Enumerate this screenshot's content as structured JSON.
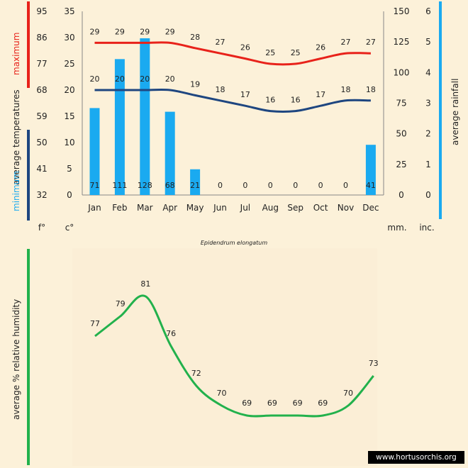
{
  "colors": {
    "background": "#fcf1d9",
    "panel": "#fbeed6",
    "max_line": "#e8221a",
    "min_line": "#1e4680",
    "rain_bar": "#1aaaf0",
    "humidity_line": "#22b14c",
    "axis_text": "#222222"
  },
  "axes": {
    "fahrenheit_ticks": [
      "32",
      "41",
      "50",
      "59",
      "68",
      "77",
      "86",
      "95"
    ],
    "celsius_ticks": [
      "0",
      "5",
      "10",
      "15",
      "20",
      "25",
      "30",
      "35"
    ],
    "mm_ticks": [
      "0",
      "25",
      "50",
      "75",
      "100",
      "125",
      "150"
    ],
    "inch_ticks": [
      "0",
      "1",
      "2",
      "3",
      "4",
      "5",
      "6"
    ],
    "unit_f": "f°",
    "unit_c": "c°",
    "unit_mm": "mm.",
    "unit_inch": "inc."
  },
  "labels": {
    "left_max": "maximum",
    "left_temps": "average  temperatures",
    "left_min": "minimum",
    "right_rain": "average rainfall",
    "caption": "Epidendrum elongatum",
    "humidity": "average %  relative humidity",
    "watermark": "www.hortusorchis.org"
  },
  "chart_data": [
    {
      "type": "line",
      "x": [
        "Jan",
        "Feb",
        "Mar",
        "Apr",
        "May",
        "Jun",
        "Jul",
        "Aug",
        "Sep",
        "Oct",
        "Nov",
        "Dec"
      ],
      "series": [
        {
          "name": "maximum",
          "unit": "c°",
          "values": [
            29,
            29,
            29,
            29,
            28,
            27,
            26,
            25,
            25,
            26,
            27,
            27
          ]
        },
        {
          "name": "minimum",
          "unit": "c°",
          "values": [
            20,
            20,
            20,
            20,
            19,
            18,
            17,
            16,
            16,
            17,
            18,
            18
          ]
        }
      ],
      "bars": {
        "unit": "mm.",
        "values": [
          71,
          111,
          128,
          68,
          21,
          0,
          0,
          0,
          0,
          0,
          0,
          41
        ]
      },
      "ylim_celsius": [
        0,
        35
      ],
      "ylim_fahrenheit": [
        32,
        95
      ],
      "ylim_mm": [
        0,
        150
      ],
      "ylim_inch": [
        0,
        6
      ],
      "caption": "Epidendrum elongatum"
    },
    {
      "type": "line",
      "x": [
        "Jan",
        "Feb",
        "Mar",
        "Apr",
        "May",
        "Jun",
        "Jul",
        "Aug",
        "Sep",
        "Oct",
        "Nov",
        "Dec"
      ],
      "series": [
        {
          "values": [
            77,
            79,
            81,
            76,
            72,
            70,
            69,
            69,
            69,
            69,
            70,
            73
          ]
        }
      ],
      "ylabel": "average %  relative humidity"
    }
  ]
}
